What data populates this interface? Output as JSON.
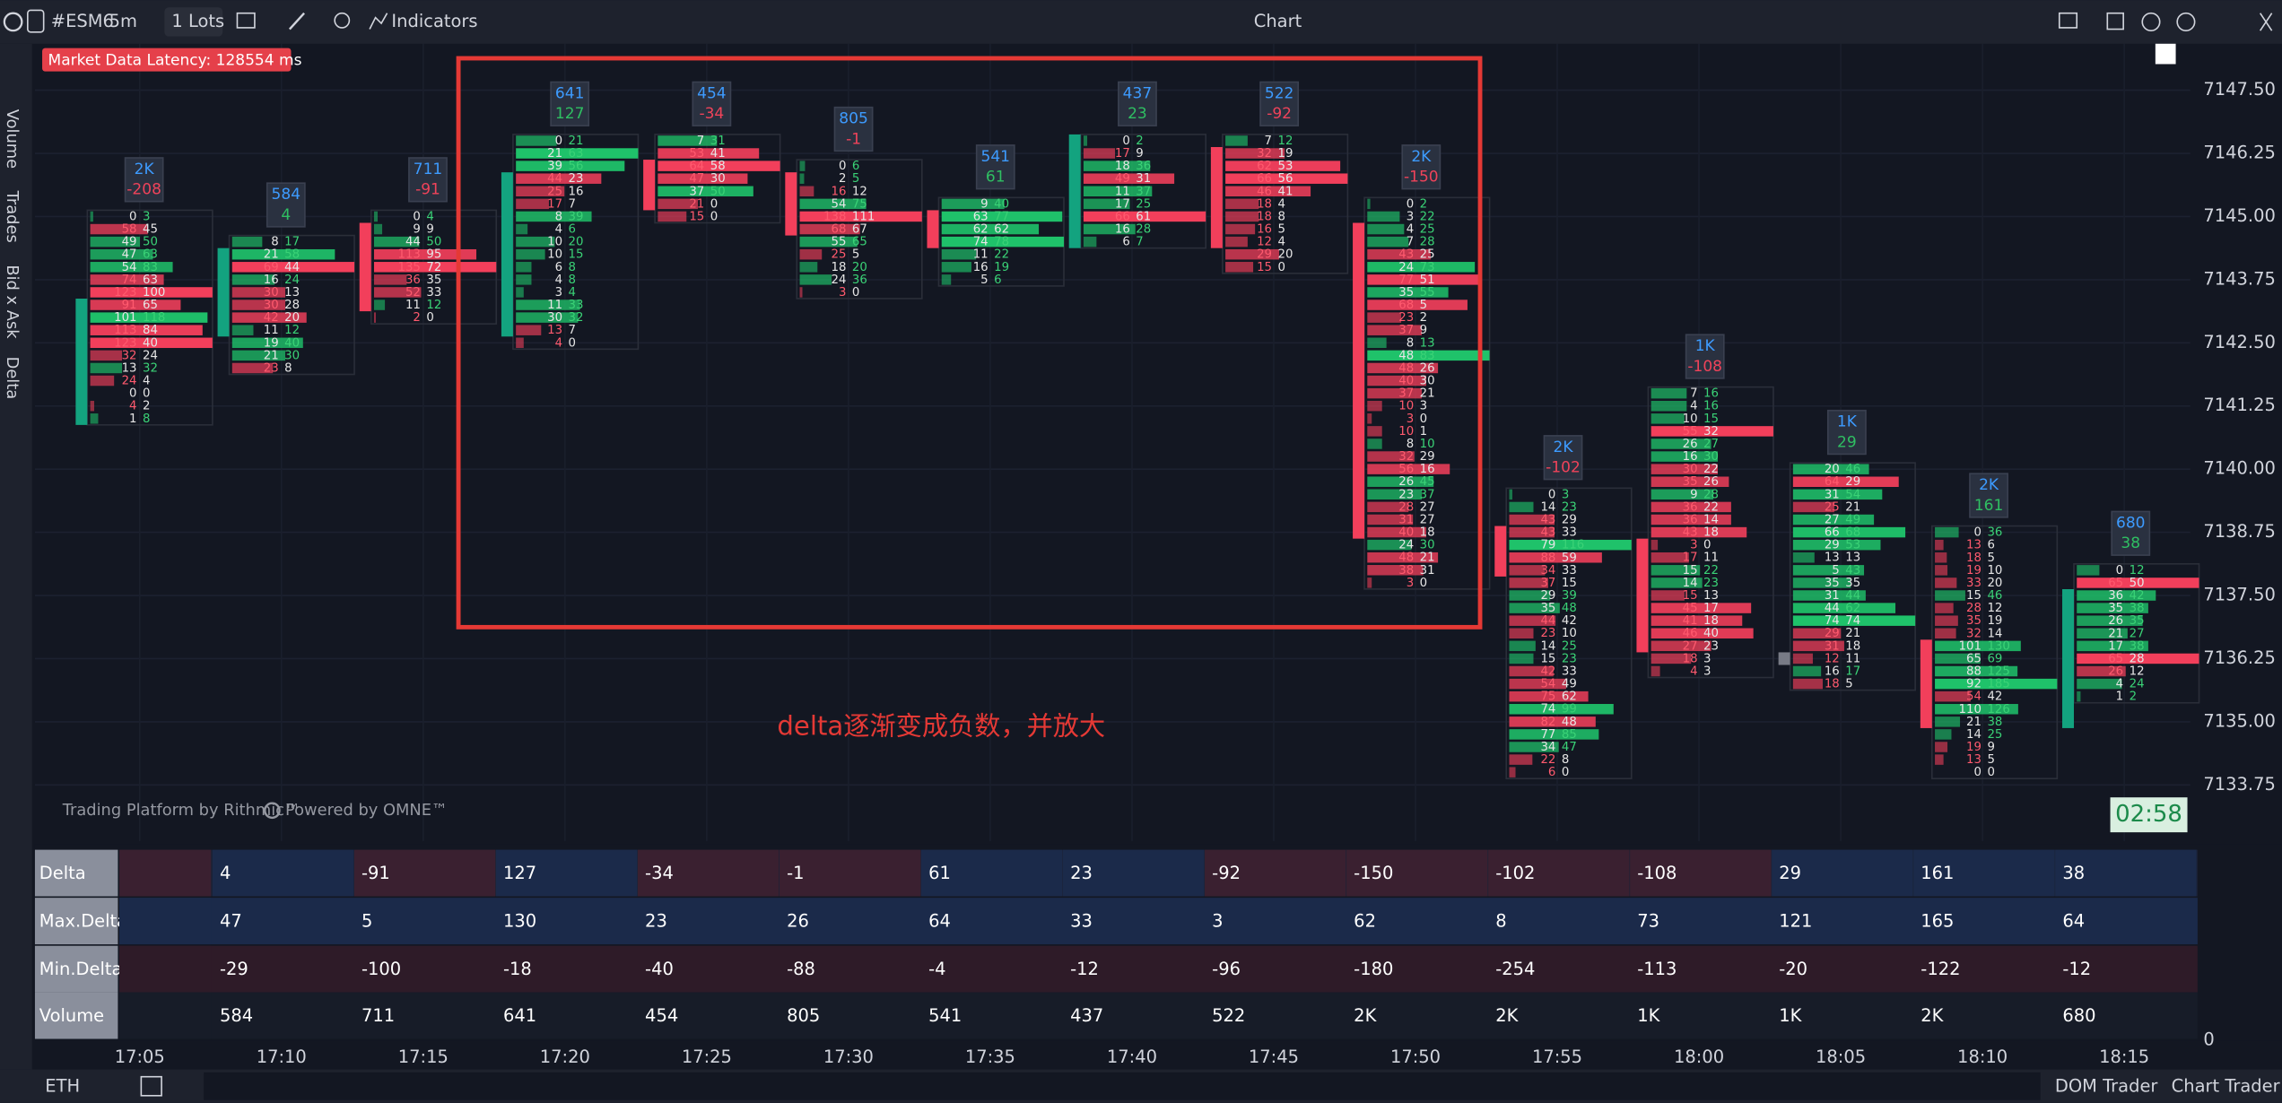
{
  "toolbar": {
    "symbol": "#ESM6",
    "interval": "5m",
    "lots": "1 Lots",
    "indicators": "Indicators",
    "title": "Chart"
  },
  "latency": "Market Data Latency: 128554 ms",
  "side_labels": [
    "Volume",
    "Trades",
    "Bid x Ask",
    "Delta"
  ],
  "price_axis": {
    "range": [
      7132.64,
      7148.42
    ],
    "ticks": [
      {
        "value": 7147.5,
        "label": "7147.50"
      },
      {
        "value": 7146.25,
        "label": "7146.25"
      },
      {
        "value": 7145,
        "label": "7145.00"
      },
      {
        "value": 7143.75,
        "label": "7143.75"
      },
      {
        "value": 7142.5,
        "label": "7142.50"
      },
      {
        "value": 7141.25,
        "label": "7141.25"
      },
      {
        "value": 7140,
        "label": "7140.00"
      },
      {
        "value": 7138.75,
        "label": "7138.75"
      },
      {
        "value": 7137.5,
        "label": "7137.50"
      },
      {
        "value": 7136.25,
        "label": "7136.25"
      },
      {
        "value": 7135,
        "label": "7135.00"
      },
      {
        "value": 7133.75,
        "label": "7133.75"
      }
    ]
  },
  "time_axis": [
    "17:05",
    "17:10",
    "17:15",
    "17:20",
    "17:25",
    "17:30",
    "17:35",
    "17:40",
    "17:45",
    "17:50",
    "17:55",
    "18:00",
    "18:05",
    "18:10",
    "18:15"
  ],
  "candles": [
    {
      "volume": "2K",
      "delta": -208,
      "open": 7141.0,
      "close": 7143.25,
      "top": 7145.0,
      "rows": [
        [
          0,
          3
        ],
        [
          58,
          45
        ],
        [
          49,
          50
        ],
        [
          47,
          63
        ],
        [
          54,
          83
        ],
        [
          74,
          63
        ],
        [
          123,
          100
        ],
        [
          91,
          65
        ],
        [
          101,
          118
        ],
        [
          113,
          84
        ],
        [
          123,
          40
        ],
        [
          32,
          24
        ],
        [
          13,
          32
        ],
        [
          24,
          4
        ],
        [
          0,
          0
        ],
        [
          4,
          2
        ],
        [
          1,
          8
        ]
      ]
    },
    {
      "volume": "584",
      "delta": 4,
      "open": 7142.75,
      "close": 7144.25,
      "top": 7144.5,
      "rows": [
        [
          8,
          17
        ],
        [
          21,
          58
        ],
        [
          69,
          44
        ],
        [
          16,
          24
        ],
        [
          30,
          13
        ],
        [
          30,
          28
        ],
        [
          42,
          20
        ],
        [
          11,
          12
        ],
        [
          19,
          40
        ],
        [
          21,
          30
        ],
        [
          23,
          8
        ]
      ]
    },
    {
      "volume": "711",
      "delta": -91,
      "open": 7144.75,
      "close": 7143.25,
      "top": 7145.0,
      "rows": [
        [
          0,
          4
        ],
        [
          9,
          9
        ],
        [
          44,
          50
        ],
        [
          113,
          95
        ],
        [
          135,
          72
        ],
        [
          36,
          35
        ],
        [
          52,
          33
        ],
        [
          11,
          12
        ],
        [
          2,
          0
        ]
      ]
    },
    {
      "volume": "641",
      "delta": 127,
      "open": 7142.75,
      "close": 7145.75,
      "top": 7146.5,
      "rows": [
        [
          0,
          21
        ],
        [
          21,
          63
        ],
        [
          39,
          56
        ],
        [
          44,
          23
        ],
        [
          25,
          16
        ],
        [
          17,
          7
        ],
        [
          8,
          39
        ],
        [
          4,
          6
        ],
        [
          10,
          20
        ],
        [
          10,
          15
        ],
        [
          6,
          8
        ],
        [
          4,
          8
        ],
        [
          3,
          4
        ],
        [
          11,
          33
        ],
        [
          30,
          32
        ],
        [
          13,
          7
        ],
        [
          4,
          0
        ]
      ]
    },
    {
      "volume": "454",
      "delta": -34,
      "open": 7146.0,
      "close": 7145.25,
      "top": 7146.5,
      "rows": [
        [
          7,
          31
        ],
        [
          53,
          41
        ],
        [
          64,
          58
        ],
        [
          47,
          30
        ],
        [
          37,
          50
        ],
        [
          21,
          0
        ],
        [
          15,
          0
        ]
      ]
    },
    {
      "volume": "805",
      "delta": -1,
      "open": 7145.75,
      "close": 7144.75,
      "top": 7146.0,
      "rows": [
        [
          0,
          6
        ],
        [
          2,
          5
        ],
        [
          16,
          12
        ],
        [
          54,
          75
        ],
        [
          138,
          111
        ],
        [
          68,
          67
        ],
        [
          55,
          65
        ],
        [
          25,
          5
        ],
        [
          18,
          20
        ],
        [
          24,
          36
        ],
        [
          3,
          0
        ]
      ]
    },
    {
      "volume": "541",
      "delta": 61,
      "open": 7145.0,
      "close": 7144.5,
      "top": 7145.25,
      "rows": [
        [
          9,
          40
        ],
        [
          63,
          77
        ],
        [
          62,
          62
        ],
        [
          74,
          78
        ],
        [
          11,
          22
        ],
        [
          16,
          19
        ],
        [
          5,
          6
        ]
      ]
    },
    {
      "volume": "437",
      "delta": 23,
      "open": 7144.5,
      "close": 7146.5,
      "top": 7146.5,
      "rows": [
        [
          0,
          2
        ],
        [
          17,
          9
        ],
        [
          18,
          36
        ],
        [
          49,
          31
        ],
        [
          11,
          37
        ],
        [
          17,
          25
        ],
        [
          66,
          61
        ],
        [
          16,
          28
        ],
        [
          6,
          7
        ]
      ]
    },
    {
      "volume": "522",
      "delta": -92,
      "open": 7146.25,
      "close": 7144.5,
      "top": 7146.5,
      "rows": [
        [
          7,
          12
        ],
        [
          32,
          19
        ],
        [
          62,
          53
        ],
        [
          66,
          56
        ],
        [
          46,
          41
        ],
        [
          18,
          4
        ],
        [
          18,
          8
        ],
        [
          16,
          5
        ],
        [
          12,
          4
        ],
        [
          29,
          20
        ],
        [
          15,
          0
        ]
      ]
    },
    {
      "volume": "2K",
      "delta": -150,
      "open": 7144.75,
      "close": 7138.75,
      "top": 7145.25,
      "rows": [
        [
          0,
          2
        ],
        [
          3,
          22
        ],
        [
          4,
          25
        ],
        [
          7,
          28
        ],
        [
          43,
          25
        ],
        [
          24,
          73
        ],
        [
          77,
          51
        ],
        [
          35,
          55
        ],
        [
          68,
          5
        ],
        [
          23,
          2
        ],
        [
          37,
          9
        ],
        [
          8,
          13
        ],
        [
          48,
          83
        ],
        [
          48,
          26
        ],
        [
          40,
          30
        ],
        [
          37,
          21
        ],
        [
          10,
          3
        ],
        [
          3,
          0
        ],
        [
          10,
          1
        ],
        [
          8,
          10
        ],
        [
          32,
          29
        ],
        [
          56,
          16
        ],
        [
          26,
          45
        ],
        [
          23,
          37
        ],
        [
          28,
          27
        ],
        [
          31,
          27
        ],
        [
          40,
          18
        ],
        [
          24,
          30
        ],
        [
          48,
          21
        ],
        [
          38,
          31
        ],
        [
          3,
          0
        ]
      ]
    },
    {
      "volume": "2K",
      "delta": -102,
      "open": 7138.75,
      "close": 7138.0,
      "top": 7139.5,
      "rows": [
        [
          0,
          3
        ],
        [
          14,
          23
        ],
        [
          43,
          29
        ],
        [
          43,
          33
        ],
        [
          79,
          116
        ],
        [
          88,
          59
        ],
        [
          34,
          33
        ],
        [
          37,
          15
        ],
        [
          29,
          39
        ],
        [
          35,
          48
        ],
        [
          44,
          42
        ],
        [
          23,
          10
        ],
        [
          14,
          25
        ],
        [
          15,
          23
        ],
        [
          42,
          33
        ],
        [
          54,
          49
        ],
        [
          75,
          62
        ],
        [
          74,
          99
        ],
        [
          82,
          48
        ],
        [
          77,
          85
        ],
        [
          34,
          47
        ],
        [
          22,
          8
        ],
        [
          6,
          0
        ]
      ]
    },
    {
      "volume": "1K",
      "delta": -108,
      "open": 7138.5,
      "close": 7136.5,
      "top": 7141.5,
      "rows": [
        [
          7,
          16
        ],
        [
          4,
          16
        ],
        [
          10,
          15
        ],
        [
          55,
          32
        ],
        [
          26,
          27
        ],
        [
          16,
          30
        ],
        [
          30,
          22
        ],
        [
          35,
          26
        ],
        [
          9,
          28
        ],
        [
          36,
          22
        ],
        [
          36,
          14
        ],
        [
          43,
          18
        ],
        [
          3,
          0
        ],
        [
          17,
          11
        ],
        [
          15,
          22
        ],
        [
          14,
          23
        ],
        [
          15,
          13
        ],
        [
          45,
          17
        ],
        [
          41,
          18
        ],
        [
          46,
          40
        ],
        [
          27,
          23
        ],
        [
          18,
          3
        ],
        [
          4,
          3
        ]
      ]
    },
    {
      "volume": "1K",
      "delta": 29,
      "open": 7136.25,
      "close": 7136.25,
      "top": 7140.0,
      "rows": [
        [
          20,
          46
        ],
        [
          64,
          29
        ],
        [
          31,
          54
        ],
        [
          25,
          21
        ],
        [
          27,
          49
        ],
        [
          66,
          68
        ],
        [
          29,
          53
        ],
        [
          13,
          13
        ],
        [
          5,
          43
        ],
        [
          35,
          35
        ],
        [
          31,
          44
        ],
        [
          44,
          62
        ],
        [
          74,
          74
        ],
        [
          29,
          21
        ],
        [
          31,
          18
        ],
        [
          12,
          11
        ],
        [
          16,
          17
        ],
        [
          18,
          5
        ]
      ]
    },
    {
      "volume": "2K",
      "delta": 161,
      "open": 7136.5,
      "close": 7135.0,
      "top": 7138.75,
      "rows": [
        [
          0,
          36
        ],
        [
          13,
          6
        ],
        [
          18,
          5
        ],
        [
          19,
          10
        ],
        [
          33,
          20
        ],
        [
          15,
          46
        ],
        [
          28,
          12
        ],
        [
          35,
          19
        ],
        [
          32,
          14
        ],
        [
          101,
          130
        ],
        [
          65,
          69
        ],
        [
          88,
          125
        ],
        [
          92,
          185
        ],
        [
          54,
          42
        ],
        [
          110,
          126
        ],
        [
          21,
          38
        ],
        [
          14,
          25
        ],
        [
          19,
          9
        ],
        [
          13,
          5
        ],
        [
          0,
          0
        ]
      ]
    },
    {
      "volume": "680",
      "delta": 38,
      "open": 7135.0,
      "close": 7137.5,
      "top": 7138.0,
      "rows": [
        [
          0,
          12
        ],
        [
          65,
          50
        ],
        [
          36,
          42
        ],
        [
          35,
          38
        ],
        [
          26,
          35
        ],
        [
          21,
          27
        ],
        [
          17,
          38
        ],
        [
          65,
          28
        ],
        [
          26,
          12
        ],
        [
          4,
          24
        ],
        [
          1,
          2
        ]
      ]
    }
  ],
  "table": {
    "row_labels": [
      "Delta",
      "Max.Delta",
      "Min.Delta",
      "Volume"
    ],
    "rows": [
      [
        4,
        -91,
        127,
        -34,
        -1,
        61,
        23,
        -92,
        -150,
        -102,
        -108,
        29,
        161,
        38
      ],
      [
        47,
        5,
        130,
        23,
        26,
        64,
        33,
        3,
        62,
        8,
        73,
        121,
        165,
        64
      ],
      [
        -29,
        -100,
        -18,
        -40,
        -88,
        -4,
        -12,
        -96,
        -180,
        -254,
        -113,
        -20,
        -122,
        -12
      ],
      [
        584,
        711,
        641,
        454,
        805,
        541,
        437,
        522,
        "2K",
        "2K",
        "1K",
        "1K",
        "2K",
        680
      ]
    ],
    "axis_label": 0
  },
  "annotation": "delta逐渐变成负数，并放大",
  "watermark": [
    "Trading Platform by Rithmic™",
    "Powered by OMNE™"
  ],
  "timer": "02:58",
  "bottom": {
    "session": "ETH",
    "buttons": [
      "DOM Trader",
      "Chart Trader"
    ]
  }
}
